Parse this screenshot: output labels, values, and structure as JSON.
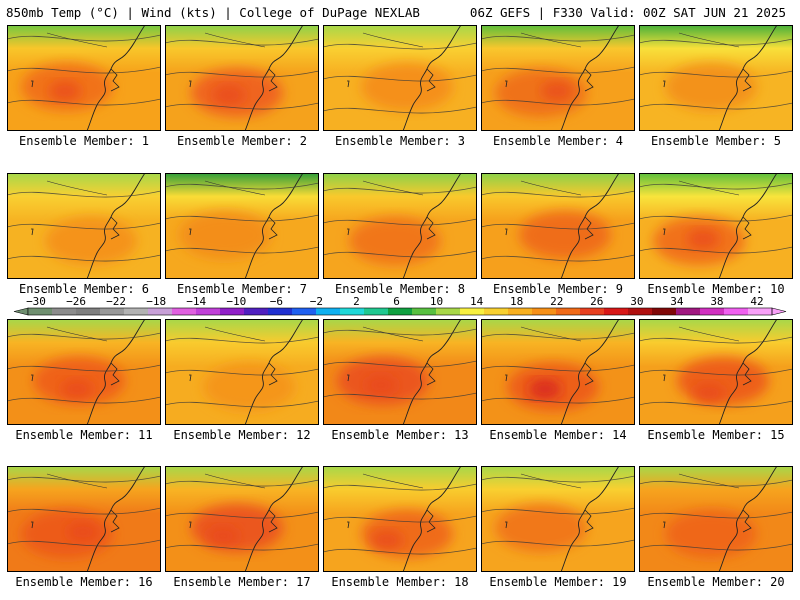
{
  "header": {
    "left": "850mb Temp (°C) | Wind (kts) | College of DuPage NEXLAB",
    "right": "06Z GEFS | F330 Valid: 00Z SAT JUN 21 2025"
  },
  "panels": [
    {
      "label": "Ensemble Member: 1",
      "base": "#f7a21a",
      "warm": "#f06a16",
      "cool": "#f8c62a",
      "green": "#72c842",
      "spots": [
        "#e8451d"
      ]
    },
    {
      "label": "Ensemble Member: 2",
      "base": "#f5a21c",
      "warm": "#ef5a1c",
      "cool": "#f9c82c",
      "green": "#8bd24a",
      "spots": [
        "#e8451d"
      ]
    },
    {
      "label": "Ensemble Member: 3",
      "base": "#f7b022",
      "warm": "#f48a1a",
      "cool": "#f9d032",
      "green": "#a6d84a",
      "spots": []
    },
    {
      "label": "Ensemble Member: 4",
      "base": "#f6a01c",
      "warm": "#ef6a16",
      "cool": "#f9c72d",
      "green": "#5cbf3c",
      "spots": [
        "#e8451d"
      ]
    },
    {
      "label": "Ensemble Member: 5",
      "base": "#f7b423",
      "warm": "#f28c1a",
      "cool": "#f8e03a",
      "green": "#46b03a",
      "spots": []
    },
    {
      "label": "Ensemble Member: 6",
      "base": "#f6b222",
      "warm": "#f48d1a",
      "cool": "#f9d032",
      "green": "#a6d84a",
      "spots": []
    },
    {
      "label": "Ensemble Member: 7",
      "base": "#f6a81e",
      "warm": "#f28a1a",
      "cool": "#f9dc36",
      "green": "#2f9e3a",
      "spots": []
    },
    {
      "label": "Ensemble Member: 8",
      "base": "#f6a51e",
      "warm": "#f06e16",
      "cool": "#f9c92c",
      "green": "#8bd24a",
      "spots": []
    },
    {
      "label": "Ensemble Member: 9",
      "base": "#f6a01c",
      "warm": "#ef6416",
      "cool": "#f9c82c",
      "green": "#8bd24a",
      "spots": []
    },
    {
      "label": "Ensemble Member: 10",
      "base": "#f7b022",
      "warm": "#f0661a",
      "cool": "#f8e43c",
      "green": "#5cbf3c",
      "spots": [
        "#e8451d"
      ]
    },
    {
      "label": "Ensemble Member: 11",
      "base": "#f39018",
      "warm": "#ee5a18",
      "cool": "#f8b424",
      "green": "#a6d84a",
      "spots": [
        "#e8451d"
      ]
    },
    {
      "label": "Ensemble Member: 12",
      "base": "#f6ac20",
      "warm": "#f4921a",
      "cool": "#f9cb2e",
      "green": "#a6d84a",
      "spots": []
    },
    {
      "label": "Ensemble Member: 13",
      "base": "#f28818",
      "warm": "#ea4e1c",
      "cool": "#f8b424",
      "green": "#a6d84a",
      "spots": [
        "#e8451d"
      ]
    },
    {
      "label": "Ensemble Member: 14",
      "base": "#f39218",
      "warm": "#ec561a",
      "cool": "#f8b424",
      "green": "#a6d84a",
      "spots": [
        "#d4181f"
      ]
    },
    {
      "label": "Ensemble Member: 15",
      "base": "#f5a01c",
      "warm": "#ec531a",
      "cool": "#f9cc2e",
      "green": "#a6d84a",
      "spots": [
        "#e8451d"
      ]
    },
    {
      "label": "Ensemble Member: 16",
      "base": "#f07a18",
      "warm": "#ec561a",
      "cool": "#f6a41e",
      "green": "#a6d84a",
      "spots": [
        "#e8451d"
      ]
    },
    {
      "label": "Ensemble Member: 17",
      "base": "#f39018",
      "warm": "#ea4e1c",
      "cool": "#f8b424",
      "green": "#a6d84a",
      "spots": [
        "#e8451d"
      ]
    },
    {
      "label": "Ensemble Member: 18",
      "base": "#f6a41e",
      "warm": "#ee621a",
      "cool": "#f9cc2e",
      "green": "#a6d84a",
      "spots": [
        "#e8451d"
      ]
    },
    {
      "label": "Ensemble Member: 19",
      "base": "#f6a41e",
      "warm": "#f0701a",
      "cool": "#f9d030",
      "green": "#a6d84a",
      "spots": []
    },
    {
      "label": "Ensemble Member: 20",
      "base": "#f28818",
      "warm": "#ee621a",
      "cool": "#f6a41e",
      "green": "#a6d84a",
      "spots": []
    }
  ],
  "colorbar": {
    "colors": [
      "#6f8f6f",
      "#8c8c8c",
      "#7f7f7f",
      "#999999",
      "#b3b3b3",
      "#c8a0d8",
      "#e060e0",
      "#c040d8",
      "#9020c8",
      "#5020c0",
      "#2030d0",
      "#2060f0",
      "#10b0f0",
      "#20d8d8",
      "#20c890",
      "#10a040",
      "#58c040",
      "#a8d848",
      "#f8f040",
      "#f8d030",
      "#f8b020",
      "#f69018",
      "#f06a18",
      "#e84020",
      "#d81818",
      "#b01010",
      "#800808",
      "#a01880",
      "#d030c0",
      "#f060f0",
      "#f8a0f8"
    ],
    "labels": [
      "−30",
      "−26",
      "−22",
      "−18",
      "−14",
      "−10",
      "−6",
      "−2",
      "2",
      "6",
      "10",
      "14",
      "18",
      "22",
      "26",
      "30",
      "34",
      "38",
      "42"
    ]
  }
}
